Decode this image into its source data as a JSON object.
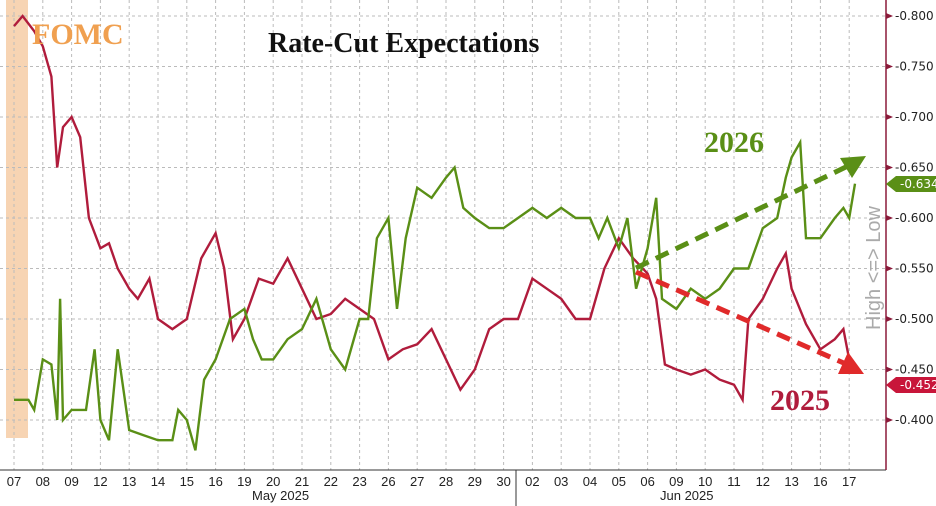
{
  "chart_data": {
    "type": "line",
    "title": "Rate-Cut Expectations",
    "annotations": {
      "fomc": "FOMC",
      "label_2026": "2026",
      "label_2025": "2025",
      "axis_note": "High <=> Low"
    },
    "x_ticks": [
      "07",
      "08",
      "09",
      "12",
      "13",
      "14",
      "15",
      "16",
      "19",
      "20",
      "21",
      "22",
      "23",
      "26",
      "27",
      "28",
      "29",
      "30",
      "02",
      "03",
      "04",
      "05",
      "06",
      "09",
      "10",
      "11",
      "12",
      "13",
      "16",
      "17"
    ],
    "months": [
      {
        "label": "May 2025"
      },
      {
        "label": "Jun 2025"
      }
    ],
    "y_ticks": [
      "-0.800",
      "-0.750",
      "-0.700",
      "-0.650",
      "-0.600",
      "-0.550",
      "-0.500",
      "-0.450",
      "-0.400"
    ],
    "ylim": [
      -0.8,
      -0.4
    ],
    "y_inverted": true,
    "last_values": {
      "s2026": "-0.634",
      "s2025": "-0.452"
    },
    "colors": {
      "s2025": "#b01c3c",
      "s2026": "#5a8f16",
      "fomc": "#f5c9a0",
      "fomc_text": "#f0a050"
    },
    "series": [
      {
        "name": "2025",
        "points": [
          [
            0,
            -0.79
          ],
          [
            0.3,
            -0.8
          ],
          [
            0.7,
            -0.785
          ],
          [
            1,
            -0.77
          ],
          [
            1.3,
            -0.74
          ],
          [
            1.5,
            -0.65
          ],
          [
            1.7,
            -0.69
          ],
          [
            2,
            -0.7
          ],
          [
            2.3,
            -0.68
          ],
          [
            2.6,
            -0.6
          ],
          [
            3,
            -0.57
          ],
          [
            3.3,
            -0.575
          ],
          [
            3.6,
            -0.55
          ],
          [
            4,
            -0.53
          ],
          [
            4.3,
            -0.52
          ],
          [
            4.7,
            -0.54
          ],
          [
            5,
            -0.5
          ],
          [
            5.5,
            -0.49
          ],
          [
            6,
            -0.5
          ],
          [
            6.5,
            -0.56
          ],
          [
            7,
            -0.585
          ],
          [
            7.3,
            -0.55
          ],
          [
            7.6,
            -0.48
          ],
          [
            8,
            -0.5
          ],
          [
            8.5,
            -0.54
          ],
          [
            9,
            -0.535
          ],
          [
            9.5,
            -0.56
          ],
          [
            10,
            -0.53
          ],
          [
            10.5,
            -0.5
          ],
          [
            11,
            -0.505
          ],
          [
            11.5,
            -0.52
          ],
          [
            12,
            -0.51
          ],
          [
            12.5,
            -0.5
          ],
          [
            13,
            -0.46
          ],
          [
            13.5,
            -0.47
          ],
          [
            14,
            -0.475
          ],
          [
            14.5,
            -0.49
          ],
          [
            15,
            -0.46
          ],
          [
            15.5,
            -0.43
          ],
          [
            16,
            -0.45
          ],
          [
            16.5,
            -0.49
          ],
          [
            17,
            -0.5
          ],
          [
            17.5,
            -0.5
          ],
          [
            18,
            -0.54
          ],
          [
            18.5,
            -0.53
          ],
          [
            19,
            -0.52
          ],
          [
            19.5,
            -0.5
          ],
          [
            20,
            -0.5
          ],
          [
            20.5,
            -0.55
          ],
          [
            21,
            -0.58
          ],
          [
            21.5,
            -0.56
          ],
          [
            22,
            -0.545
          ],
          [
            22.3,
            -0.52
          ],
          [
            22.6,
            -0.455
          ],
          [
            23,
            -0.45
          ],
          [
            23.5,
            -0.445
          ],
          [
            24,
            -0.45
          ],
          [
            24.5,
            -0.44
          ],
          [
            25,
            -0.435
          ],
          [
            25.3,
            -0.42
          ],
          [
            25.5,
            -0.5
          ],
          [
            26,
            -0.52
          ],
          [
            26.5,
            -0.55
          ],
          [
            26.8,
            -0.565
          ],
          [
            27,
            -0.53
          ],
          [
            27.5,
            -0.495
          ],
          [
            28,
            -0.47
          ],
          [
            28.5,
            -0.48
          ],
          [
            28.8,
            -0.49
          ],
          [
            29,
            -0.46
          ],
          [
            29.2,
            -0.452
          ]
        ]
      },
      {
        "name": "2026",
        "points": [
          [
            0,
            -0.42
          ],
          [
            0.5,
            -0.42
          ],
          [
            0.7,
            -0.41
          ],
          [
            1,
            -0.46
          ],
          [
            1.3,
            -0.455
          ],
          [
            1.5,
            -0.4
          ],
          [
            1.6,
            -0.52
          ],
          [
            1.7,
            -0.4
          ],
          [
            2,
            -0.41
          ],
          [
            2.5,
            -0.41
          ],
          [
            2.8,
            -0.47
          ],
          [
            3,
            -0.4
          ],
          [
            3.3,
            -0.38
          ],
          [
            3.6,
            -0.47
          ],
          [
            4,
            -0.39
          ],
          [
            4.5,
            -0.385
          ],
          [
            5,
            -0.38
          ],
          [
            5.5,
            -0.38
          ],
          [
            5.7,
            -0.41
          ],
          [
            6,
            -0.4
          ],
          [
            6.3,
            -0.37
          ],
          [
            6.6,
            -0.44
          ],
          [
            7,
            -0.46
          ],
          [
            7.5,
            -0.5
          ],
          [
            8,
            -0.51
          ],
          [
            8.3,
            -0.48
          ],
          [
            8.6,
            -0.46
          ],
          [
            9,
            -0.46
          ],
          [
            9.5,
            -0.48
          ],
          [
            10,
            -0.49
          ],
          [
            10.5,
            -0.52
          ],
          [
            11,
            -0.47
          ],
          [
            11.5,
            -0.45
          ],
          [
            12,
            -0.5
          ],
          [
            12.3,
            -0.5
          ],
          [
            12.6,
            -0.58
          ],
          [
            13,
            -0.6
          ],
          [
            13.3,
            -0.51
          ],
          [
            13.6,
            -0.58
          ],
          [
            14,
            -0.63
          ],
          [
            14.5,
            -0.62
          ],
          [
            15,
            -0.64
          ],
          [
            15.3,
            -0.65
          ],
          [
            15.6,
            -0.61
          ],
          [
            16,
            -0.6
          ],
          [
            16.5,
            -0.59
          ],
          [
            17,
            -0.59
          ],
          [
            17.5,
            -0.6
          ],
          [
            18,
            -0.61
          ],
          [
            18.5,
            -0.6
          ],
          [
            19,
            -0.61
          ],
          [
            19.5,
            -0.6
          ],
          [
            20,
            -0.6
          ],
          [
            20.3,
            -0.58
          ],
          [
            20.6,
            -0.6
          ],
          [
            21,
            -0.57
          ],
          [
            21.3,
            -0.6
          ],
          [
            21.6,
            -0.53
          ],
          [
            22,
            -0.57
          ],
          [
            22.3,
            -0.62
          ],
          [
            22.5,
            -0.52
          ],
          [
            23,
            -0.51
          ],
          [
            23.5,
            -0.53
          ],
          [
            24,
            -0.52
          ],
          [
            24.5,
            -0.53
          ],
          [
            25,
            -0.55
          ],
          [
            25.5,
            -0.55
          ],
          [
            26,
            -0.59
          ],
          [
            26.5,
            -0.6
          ],
          [
            26.8,
            -0.64
          ],
          [
            27,
            -0.66
          ],
          [
            27.3,
            -0.675
          ],
          [
            27.5,
            -0.58
          ],
          [
            28,
            -0.58
          ],
          [
            28.5,
            -0.6
          ],
          [
            28.8,
            -0.61
          ],
          [
            29,
            -0.6
          ],
          [
            29.2,
            -0.634
          ]
        ]
      }
    ]
  }
}
